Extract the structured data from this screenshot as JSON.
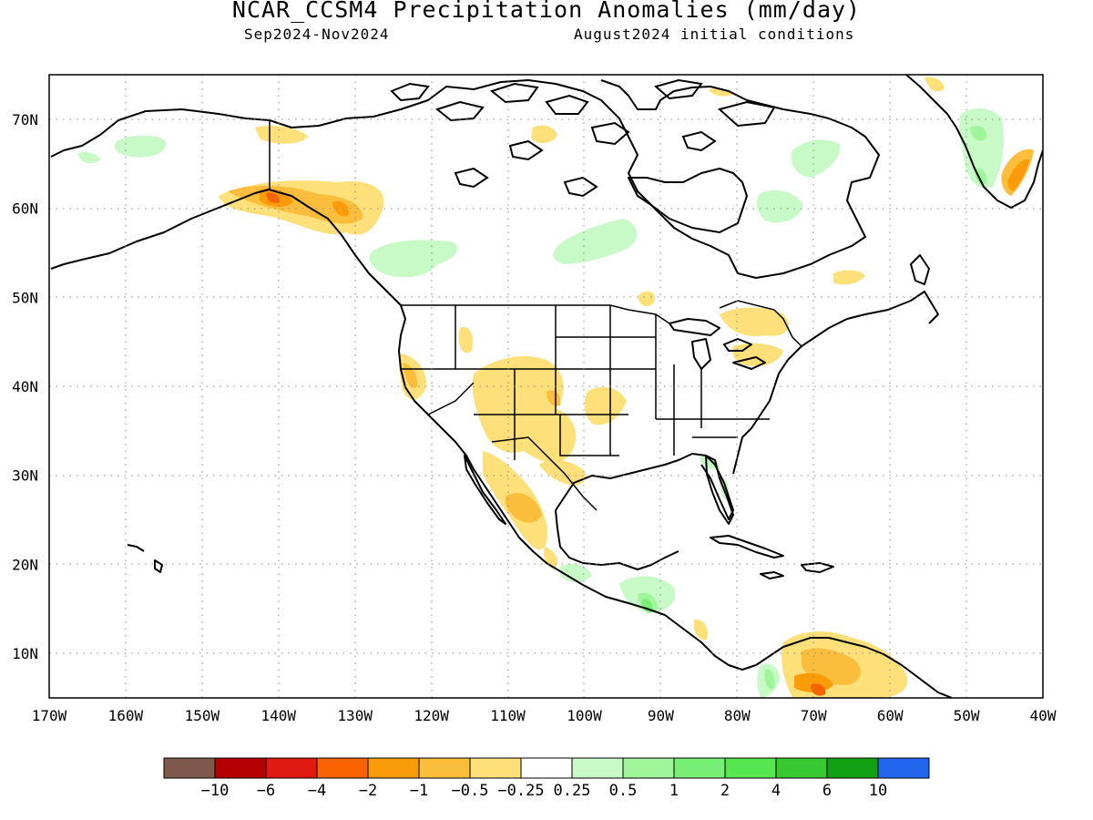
{
  "header": {
    "title": "NCAR_CCSM4 Precipitation Anomalies (mm/day)",
    "period": "Sep2024-Nov2024",
    "init": "August2024 initial conditions"
  },
  "map": {
    "lon_range": [
      -170,
      -40
    ],
    "lat_range": [
      5,
      75
    ],
    "lat_labels": [
      {
        "lat": 70,
        "text": "70N"
      },
      {
        "lat": 60,
        "text": "60N"
      },
      {
        "lat": 50,
        "text": "50N"
      },
      {
        "lat": 40,
        "text": "40N"
      },
      {
        "lat": 30,
        "text": "30N"
      },
      {
        "lat": 20,
        "text": "20N"
      },
      {
        "lat": 10,
        "text": "10N"
      }
    ],
    "lon_labels": [
      {
        "lon": -170,
        "text": "170W"
      },
      {
        "lon": -160,
        "text": "160W"
      },
      {
        "lon": -150,
        "text": "150W"
      },
      {
        "lon": -140,
        "text": "140W"
      },
      {
        "lon": -130,
        "text": "130W"
      },
      {
        "lon": -120,
        "text": "120W"
      },
      {
        "lon": -110,
        "text": "110W"
      },
      {
        "lon": -100,
        "text": "100W"
      },
      {
        "lon": -90,
        "text": "90W"
      },
      {
        "lon": -80,
        "text": "80W"
      },
      {
        "lon": -70,
        "text": "70W"
      },
      {
        "lon": -60,
        "text": "60W"
      },
      {
        "lon": -50,
        "text": "50W"
      },
      {
        "lon": -40,
        "text": "40W"
      }
    ],
    "grid": "dotted"
  },
  "legend": {
    "colors": [
      "#7f5a4c",
      "#b40000",
      "#e01a10",
      "#fa6400",
      "#fa9b0a",
      "#fbbe3c",
      "#fde07a",
      "#ffffff",
      "#c8fac8",
      "#a0f59a",
      "#78ef76",
      "#55e650",
      "#38c832",
      "#14a014",
      "#2266ee"
    ],
    "labels": [
      "-10",
      "-6",
      "-4",
      "-2",
      "-1",
      "-0.5",
      "-0.25",
      "0.25",
      "0.5",
      "1",
      "2",
      "4",
      "6",
      "10"
    ]
  }
}
